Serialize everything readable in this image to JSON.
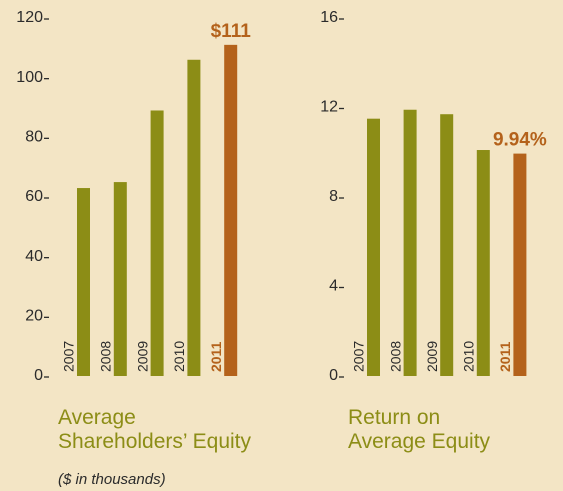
{
  "chart_data": [
    {
      "type": "bar",
      "title": [
        "Average",
        "Shareholders’ Equity"
      ],
      "subtitle": "($ in thousands)",
      "categories": [
        "2007",
        "2008",
        "2009",
        "2010",
        "2011"
      ],
      "values": [
        63,
        65,
        89,
        106,
        111
      ],
      "value_labels": [
        null,
        null,
        null,
        null,
        "$111"
      ],
      "colors": [
        "#8c8d16",
        "#8c8d16",
        "#8c8d16",
        "#8c8d16",
        "#b4621b"
      ],
      "label_colors": [
        "#2b2b2b",
        "#2b2b2b",
        "#2b2b2b",
        "#2b2b2b",
        "#b4621b"
      ],
      "ylim": [
        0,
        120
      ],
      "yticks": [
        0,
        20,
        40,
        60,
        80,
        100,
        120
      ],
      "grid": false
    },
    {
      "type": "bar",
      "title": [
        "Return on",
        "Average Equity"
      ],
      "categories": [
        "2007",
        "2008",
        "2009",
        "2010",
        "2011"
      ],
      "values": [
        11.5,
        11.9,
        11.7,
        10.1,
        9.94
      ],
      "value_labels": [
        null,
        null,
        null,
        null,
        "9.94%"
      ],
      "colors": [
        "#8c8d16",
        "#8c8d16",
        "#8c8d16",
        "#8c8d16",
        "#b4621b"
      ],
      "label_colors": [
        "#2b2b2b",
        "#2b2b2b",
        "#2b2b2b",
        "#2b2b2b",
        "#b4621b"
      ],
      "ylim": [
        0,
        16
      ],
      "yticks": [
        0,
        4,
        8,
        12,
        16
      ],
      "grid": false
    }
  ]
}
